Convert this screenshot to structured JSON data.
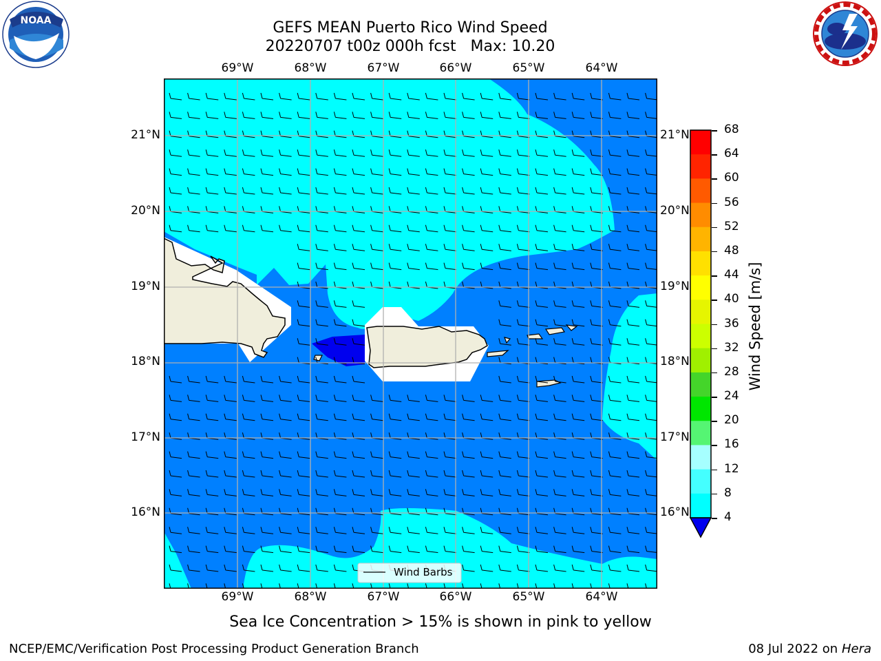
{
  "title": {
    "line1": "GEFS MEAN Puerto Rico Wind Speed",
    "line2": "20220707 t00z 000h fcst   Max: 10.20"
  },
  "map": {
    "lon_ticks": [
      "69°W",
      "68°W",
      "67°W",
      "66°W",
      "65°W",
      "64°W"
    ],
    "lat_ticks": [
      "21°N",
      "20°N",
      "19°N",
      "18°N",
      "17°N",
      "16°N"
    ],
    "colors": {
      "cyan": "#00ffff",
      "blue": "#0080ff",
      "dark_blue": "#0000ee",
      "land": "#f0eedc",
      "masked": "#ffffff",
      "grid": "#b0b0b0"
    },
    "legend_label": "Wind Barbs"
  },
  "colorbar": {
    "label": "Wind Speed [m/s]",
    "ticks": [
      "68",
      "64",
      "60",
      "56",
      "52",
      "48",
      "44",
      "40",
      "36",
      "32",
      "28",
      "24",
      "20",
      "16",
      "12",
      "8",
      "4"
    ],
    "colors": [
      "#ff0000",
      "#ff2400",
      "#ff5a00",
      "#ff8c00",
      "#ffb400",
      "#ffe000",
      "#ffff00",
      "#e6f500",
      "#ccff00",
      "#a0f000",
      "#44d52a",
      "#00e600",
      "#55f573",
      "#a6ffff",
      "#44ffff",
      "#00ffff",
      "#0080ff"
    ],
    "extend_color": "#0000ee"
  },
  "subtitle": "Sea Ice Concentration > 15% is shown in pink to yellow",
  "footer": {
    "left": "NCEP/EMC/Verification Post Processing Product Generation Branch",
    "right_prefix": "08 Jul 2022 on ",
    "right_machine": "Hera"
  },
  "logos": {
    "noaa_text": "NOAA",
    "nws_text": "NATIONAL WEATHER SERVICE"
  }
}
